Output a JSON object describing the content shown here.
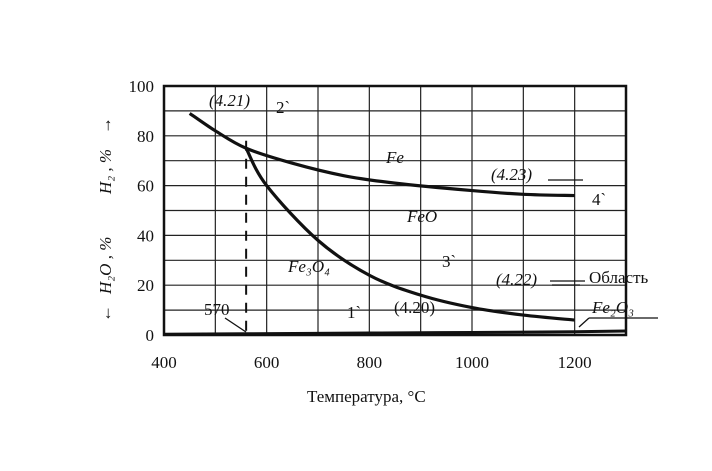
{
  "chart_data": {
    "type": "line",
    "xlabel": "Температура, °C",
    "ylabel_lower": "H₂O , %",
    "ylabel_upper": "H₂ , %",
    "arrow_down": "←",
    "arrow_up": "→",
    "xlim": [
      400,
      1300
    ],
    "ylim": [
      0,
      100
    ],
    "x_ticks": [
      "400",
      "600",
      "800",
      "1000",
      "1200"
    ],
    "y_ticks": [
      "0",
      "20",
      "40",
      "60",
      "80",
      "100"
    ],
    "grid": true,
    "series": [
      {
        "x": [
          450,
          500,
          560,
          650,
          750,
          850,
          1000,
          1100,
          1200
        ],
        "y": [
          89,
          82,
          75,
          69,
          64,
          61,
          58,
          56.5,
          56
        ]
      },
      {
        "x": [
          560,
          600,
          700,
          800,
          900,
          1000,
          1100,
          1200
        ],
        "y": [
          75,
          60,
          38,
          24,
          16,
          11,
          8,
          6
        ]
      },
      {
        "x": [
          400,
          560,
          800,
          1000,
          1200,
          1300
        ],
        "y": [
          0.3,
          0.5,
          0.8,
          1.0,
          1.3,
          1.6
        ]
      }
    ],
    "vline_x": 560,
    "annotations": {
      "eq_421": "(4.21)",
      "eq_423": "(4.23)",
      "eq_422": "(4.22)",
      "eq_420": "(4.20)",
      "label_2": "2`",
      "label_3": "3`",
      "label_4": "4`",
      "label_1": "1`",
      "fe": "Fe",
      "feo": "FeO",
      "fe3o4": "Fe₃O₄",
      "fe2o3": "Fe₂O₃",
      "oblast": "Область",
      "t570": "570"
    }
  }
}
